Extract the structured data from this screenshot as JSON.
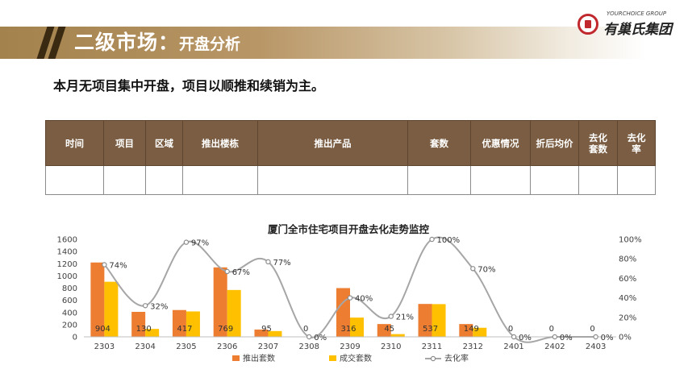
{
  "header": {
    "title_main": "二级市场：",
    "title_sub": "开盘分析"
  },
  "logo": {
    "en": "YOURCHOICE GROUP",
    "cn": "有巢氏集团"
  },
  "headline": "本月无项目集中开盘，项目以顺推和续销为主。",
  "table": {
    "headers": [
      "时间",
      "项目",
      "区域",
      "推出楼栋",
      "推出产品",
      "套数",
      "优惠情况",
      "折后均价",
      "去化\n套数",
      "去化\n率"
    ]
  },
  "colors": {
    "header_bar": "#a4824d",
    "table_header": "#7a5d42",
    "bar_pushed": "#ed7d31",
    "bar_sold": "#ffc000",
    "line_rate": "#a6a6a6"
  },
  "chart_data": {
    "type": "bar",
    "title": "厦门全市住宅项目开盘去化走势监控",
    "categories": [
      "2303",
      "2304",
      "2305",
      "2306",
      "2307",
      "2308",
      "2309",
      "2310",
      "2311",
      "2312",
      "2401",
      "2402",
      "2403"
    ],
    "series": [
      {
        "name": "推出套数",
        "type": "bar",
        "axis": "left",
        "values": [
          1220,
          410,
          440,
          1140,
          120,
          0,
          800,
          210,
          540,
          210,
          0,
          0,
          0
        ]
      },
      {
        "name": "成交套数",
        "type": "bar",
        "axis": "left",
        "values": [
          904,
          130,
          417,
          769,
          95,
          0,
          316,
          45,
          537,
          149,
          0,
          0,
          0
        ]
      },
      {
        "name": "去化率",
        "type": "line",
        "axis": "right",
        "values": [
          74,
          32,
          97,
          67,
          77,
          0,
          40,
          21,
          100,
          70,
          0,
          0,
          0
        ]
      }
    ],
    "sold_labels": [
      "904",
      "130",
      "417",
      "769",
      "95",
      "0",
      "316",
      "45",
      "537",
      "149",
      "0",
      "0",
      "0"
    ],
    "rate_labels": [
      "74%",
      "32%",
      "97%",
      "67%",
      "77%",
      "0%",
      "40%",
      "21%",
      "100%",
      "70%",
      "0%",
      "0%",
      "0%"
    ],
    "left_axis": {
      "ylim": [
        0,
        1600
      ],
      "ticks": [
        "0",
        "200",
        "400",
        "600",
        "800",
        "1000",
        "1200",
        "1400",
        "1600"
      ]
    },
    "right_axis": {
      "ylim": [
        0,
        100
      ],
      "ticks": [
        "0%",
        "20%",
        "40%",
        "60%",
        "80%",
        "100%"
      ]
    },
    "legend": [
      "推出套数",
      "成交套数",
      "去化率"
    ],
    "legend_position": "bottom",
    "grid": false
  }
}
